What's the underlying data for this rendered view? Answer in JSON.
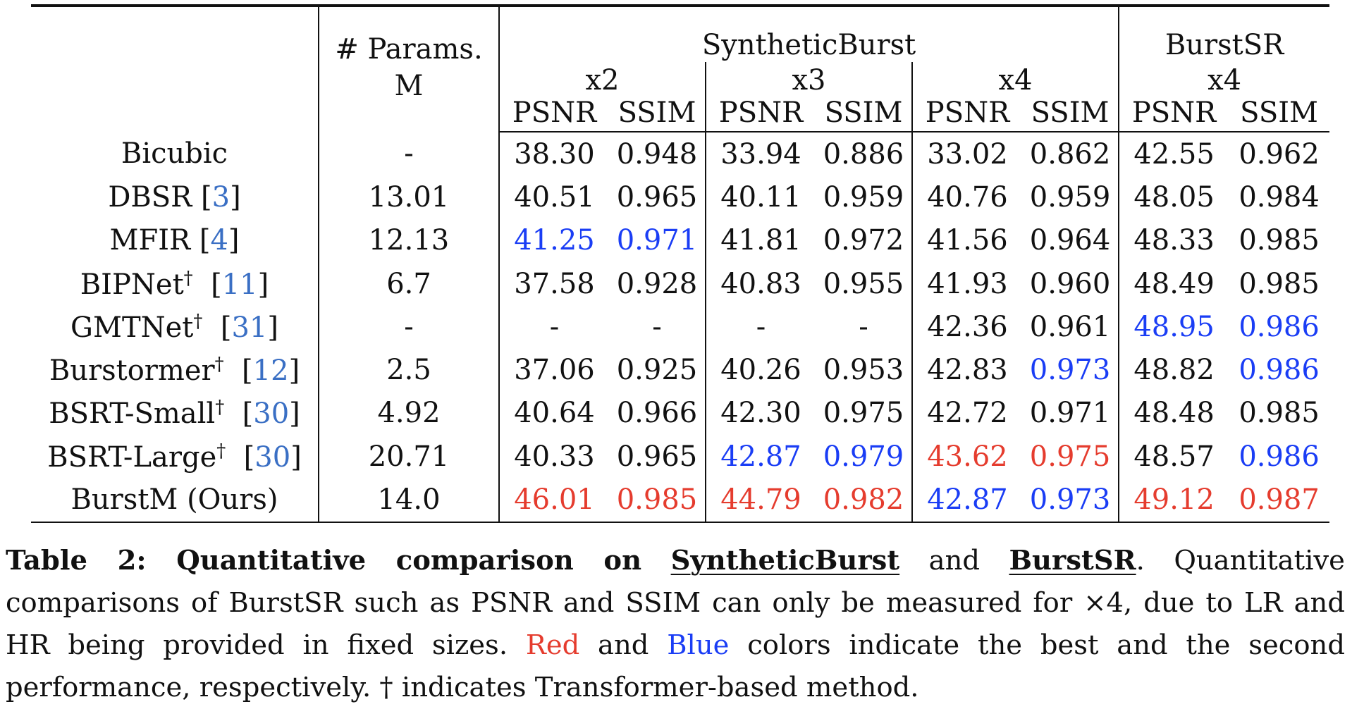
{
  "table": {
    "header": {
      "params_line1": "# Params.",
      "params_line2": "M",
      "synthetic_group": "SyntheticBurst",
      "burstsr_group": "BurstSR",
      "scale_x2": "x2",
      "scale_x3": "x3",
      "scale_x4": "x4",
      "scale_bsr_x4": "x4",
      "psnr": "PSNR",
      "ssim": "SSIM"
    },
    "rows": [
      {
        "name": "Bicubic",
        "dagger": "",
        "cite": "",
        "params": "-",
        "cells": [
          {
            "v": "38.30",
            "c": ""
          },
          {
            "v": "0.948",
            "c": ""
          },
          {
            "v": "33.94",
            "c": ""
          },
          {
            "v": "0.886",
            "c": ""
          },
          {
            "v": "33.02",
            "c": ""
          },
          {
            "v": "0.862",
            "c": ""
          },
          {
            "v": "42.55",
            "c": ""
          },
          {
            "v": "0.962",
            "c": ""
          }
        ]
      },
      {
        "name": "DBSR",
        "dagger": "",
        "cite": "3",
        "params": "13.01",
        "cells": [
          {
            "v": "40.51",
            "c": ""
          },
          {
            "v": "0.965",
            "c": ""
          },
          {
            "v": "40.11",
            "c": ""
          },
          {
            "v": "0.959",
            "c": ""
          },
          {
            "v": "40.76",
            "c": ""
          },
          {
            "v": "0.959",
            "c": ""
          },
          {
            "v": "48.05",
            "c": ""
          },
          {
            "v": "0.984",
            "c": ""
          }
        ]
      },
      {
        "name": "MFIR",
        "dagger": "",
        "cite": "4",
        "params": "12.13",
        "cells": [
          {
            "v": "41.25",
            "c": "second"
          },
          {
            "v": "0.971",
            "c": "second"
          },
          {
            "v": "41.81",
            "c": ""
          },
          {
            "v": "0.972",
            "c": ""
          },
          {
            "v": "41.56",
            "c": ""
          },
          {
            "v": "0.964",
            "c": ""
          },
          {
            "v": "48.33",
            "c": ""
          },
          {
            "v": "0.985",
            "c": ""
          }
        ]
      },
      {
        "name": "BIPNet",
        "dagger": "†",
        "cite": "11",
        "params": "6.7",
        "cells": [
          {
            "v": "37.58",
            "c": ""
          },
          {
            "v": "0.928",
            "c": ""
          },
          {
            "v": "40.83",
            "c": ""
          },
          {
            "v": "0.955",
            "c": ""
          },
          {
            "v": "41.93",
            "c": ""
          },
          {
            "v": "0.960",
            "c": ""
          },
          {
            "v": "48.49",
            "c": ""
          },
          {
            "v": "0.985",
            "c": ""
          }
        ]
      },
      {
        "name": "GMTNet",
        "dagger": "†",
        "cite": "31",
        "params": "-",
        "cells": [
          {
            "v": "-",
            "c": ""
          },
          {
            "v": "-",
            "c": ""
          },
          {
            "v": "-",
            "c": ""
          },
          {
            "v": "-",
            "c": ""
          },
          {
            "v": "42.36",
            "c": ""
          },
          {
            "v": "0.961",
            "c": ""
          },
          {
            "v": "48.95",
            "c": "second"
          },
          {
            "v": "0.986",
            "c": "second"
          }
        ]
      },
      {
        "name": "Burstormer",
        "dagger": "†",
        "cite": "12",
        "params": "2.5",
        "cells": [
          {
            "v": "37.06",
            "c": ""
          },
          {
            "v": "0.925",
            "c": ""
          },
          {
            "v": "40.26",
            "c": ""
          },
          {
            "v": "0.953",
            "c": ""
          },
          {
            "v": "42.83",
            "c": ""
          },
          {
            "v": "0.973",
            "c": "second"
          },
          {
            "v": "48.82",
            "c": ""
          },
          {
            "v": "0.986",
            "c": "second"
          }
        ]
      },
      {
        "name": "BSRT-Small",
        "dagger": "†",
        "cite": "30",
        "params": "4.92",
        "cells": [
          {
            "v": "40.64",
            "c": ""
          },
          {
            "v": "0.966",
            "c": ""
          },
          {
            "v": "42.30",
            "c": ""
          },
          {
            "v": "0.975",
            "c": ""
          },
          {
            "v": "42.72",
            "c": ""
          },
          {
            "v": "0.971",
            "c": ""
          },
          {
            "v": "48.48",
            "c": ""
          },
          {
            "v": "0.985",
            "c": ""
          }
        ]
      },
      {
        "name": "BSRT-Large",
        "dagger": "†",
        "cite": "30",
        "params": "20.71",
        "cells": [
          {
            "v": "40.33",
            "c": ""
          },
          {
            "v": "0.965",
            "c": ""
          },
          {
            "v": "42.87",
            "c": "second"
          },
          {
            "v": "0.979",
            "c": "second"
          },
          {
            "v": "43.62",
            "c": "best"
          },
          {
            "v": "0.975",
            "c": "best"
          },
          {
            "v": "48.57",
            "c": ""
          },
          {
            "v": "0.986",
            "c": "second"
          }
        ]
      }
    ],
    "ours": {
      "name": "BurstM (Ours)",
      "params": "14.0",
      "cells": [
        {
          "v": "46.01",
          "c": "best"
        },
        {
          "v": "0.985",
          "c": "best"
        },
        {
          "v": "44.79",
          "c": "best"
        },
        {
          "v": "0.982",
          "c": "best"
        },
        {
          "v": "42.87",
          "c": "second"
        },
        {
          "v": "0.973",
          "c": "second"
        },
        {
          "v": "49.12",
          "c": "best"
        },
        {
          "v": "0.987",
          "c": "best"
        }
      ]
    }
  },
  "caption": {
    "title_prefix": "Table 2: Quantitative comparison on",
    "title_synthetic": "SyntheticBurst",
    "title_and": "and",
    "title_burstsr": "BurstSR",
    "body_1": ". Quantitative comparisons of BurstSR such as PSNR and SSIM can only be measured for ×4, due to LR and HR being provided in fixed sizes.",
    "red_word": "Red",
    "and_word": "and",
    "blue_word": "Blue",
    "body_2": "colors indicate the best and the second performance, respectively. † indicates Transformer-based method."
  },
  "colors": {
    "best": "#e53c2e",
    "second": "#1a3df5",
    "citation": "#3a6fc4"
  }
}
